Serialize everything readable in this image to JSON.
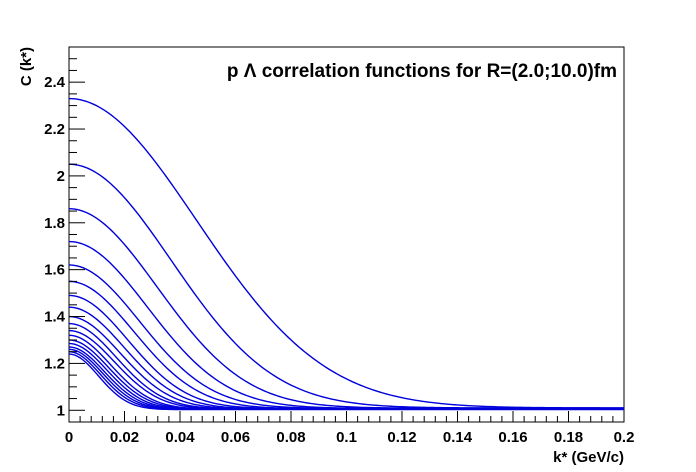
{
  "chart_data": {
    "type": "line",
    "title": "p Λ correlation functions for R=(2.0;10.0)fm",
    "xlabel": "k* (GeV/c)",
    "ylabel": "C (k*)",
    "xlim": [
      0,
      0.2
    ],
    "ylim": [
      0.95,
      2.55
    ],
    "x_ticks": [
      0,
      0.02,
      0.04,
      0.06,
      0.08,
      0.1,
      0.12,
      0.14,
      0.16,
      0.18,
      0.2
    ],
    "x_tick_labels": [
      "0",
      "0.02",
      "0.04",
      "0.06",
      "0.08",
      "0.1",
      "0.12",
      "0.14",
      "0.16",
      "0.18",
      "0.2"
    ],
    "y_ticks": [
      1,
      1.2,
      1.4,
      1.6,
      1.8,
      2,
      2.2,
      2.4
    ],
    "y_tick_labels": [
      "1",
      "1.2",
      "1.4",
      "1.6",
      "1.8",
      "2",
      "2.2",
      "2.4"
    ],
    "grid": false,
    "line_color": "#0000dd",
    "curve_shape": "gaussian",
    "series": [
      {
        "c0": 2.33,
        "w": 0.065,
        "tail": 0.01
      },
      {
        "c0": 2.05,
        "w": 0.052,
        "tail": 0.01
      },
      {
        "c0": 1.86,
        "w": 0.045,
        "tail": 0.009
      },
      {
        "c0": 1.72,
        "w": 0.04,
        "tail": 0.008
      },
      {
        "c0": 1.62,
        "w": 0.036,
        "tail": 0.008
      },
      {
        "c0": 1.55,
        "w": 0.033,
        "tail": 0.007
      },
      {
        "c0": 1.49,
        "w": 0.03,
        "tail": 0.007
      },
      {
        "c0": 1.44,
        "w": 0.028,
        "tail": 0.006
      },
      {
        "c0": 1.4,
        "w": 0.026,
        "tail": 0.006
      },
      {
        "c0": 1.37,
        "w": 0.024,
        "tail": 0.006
      },
      {
        "c0": 1.34,
        "w": 0.023,
        "tail": 0.005
      },
      {
        "c0": 1.32,
        "w": 0.021,
        "tail": 0.005
      },
      {
        "c0": 1.3,
        "w": 0.02,
        "tail": 0.005
      },
      {
        "c0": 1.285,
        "w": 0.019,
        "tail": 0.004
      },
      {
        "c0": 1.27,
        "w": 0.018,
        "tail": 0.004
      },
      {
        "c0": 1.26,
        "w": 0.017,
        "tail": 0.004
      },
      {
        "c0": 1.25,
        "w": 0.016,
        "tail": 0.004
      },
      {
        "c0": 1.24,
        "w": 0.015,
        "tail": 0.003
      }
    ]
  }
}
